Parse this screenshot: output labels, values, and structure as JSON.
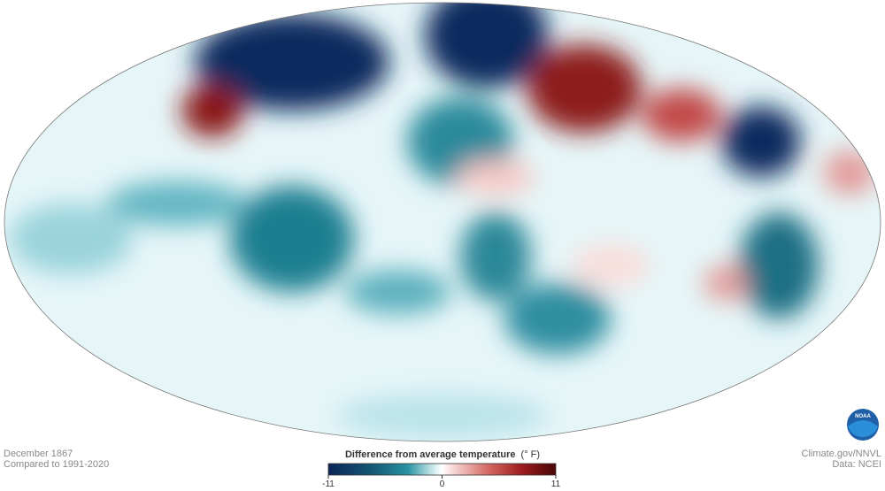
{
  "map": {
    "period": "December 1867",
    "baseline": "Compared to 1991-2020"
  },
  "legend": {
    "title": "Difference from average temperature",
    "unit": "(° F)",
    "range": [
      -11,
      11
    ],
    "ticks": [
      -11,
      0,
      11
    ]
  },
  "credits": {
    "site": "Climate.gov/NNVL",
    "source": "Data: NCEI",
    "logo": "NOAA"
  }
}
